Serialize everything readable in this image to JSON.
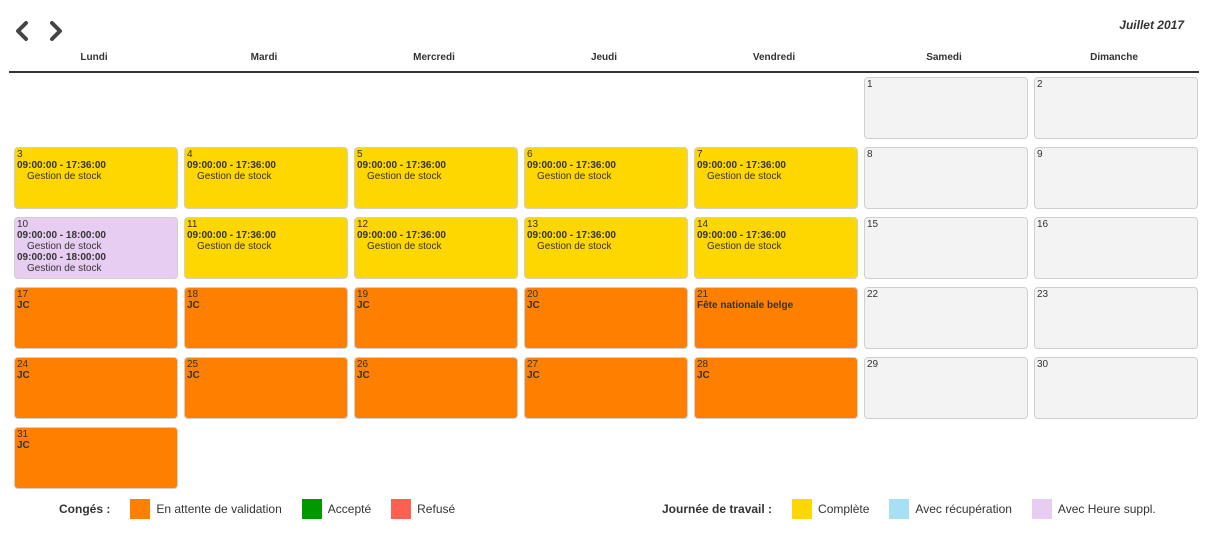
{
  "nav": {
    "prev_icon": "chevron-left-icon",
    "next_icon": "chevron-right-icon"
  },
  "month_title": "Juillet 2017",
  "weekdays": [
    "Lundi",
    "Mardi",
    "Mercredi",
    "Jeudi",
    "Vendredi",
    "Samedi",
    "Dimanche"
  ],
  "colors": {
    "pending": "#ff8000",
    "accepted": "#009900",
    "refused": "#ff6052",
    "complete": "#ffd700",
    "recovery": "#a8e0f3",
    "overtime": "#e8cdf3",
    "empty": "#f3f3f3"
  },
  "days": [
    {
      "day": "1",
      "type": "empty-day",
      "col": 5,
      "row": 0
    },
    {
      "day": "2",
      "type": "empty-day",
      "col": 6,
      "row": 0
    },
    {
      "day": "3",
      "type": "complete",
      "col": 0,
      "row": 1,
      "time": "09:00:00 - 17:36:00",
      "task": "Gestion de stock"
    },
    {
      "day": "4",
      "type": "complete",
      "col": 1,
      "row": 1,
      "time": "09:00:00 - 17:36:00",
      "task": "Gestion de stock"
    },
    {
      "day": "5",
      "type": "complete",
      "col": 2,
      "row": 1,
      "time": "09:00:00 - 17:36:00",
      "task": "Gestion de stock"
    },
    {
      "day": "6",
      "type": "complete",
      "col": 3,
      "row": 1,
      "time": "09:00:00 - 17:36:00",
      "task": "Gestion de stock"
    },
    {
      "day": "7",
      "type": "complete",
      "col": 4,
      "row": 1,
      "time": "09:00:00 - 17:36:00",
      "task": "Gestion de stock"
    },
    {
      "day": "8",
      "type": "empty-day",
      "col": 5,
      "row": 1
    },
    {
      "day": "9",
      "type": "empty-day",
      "col": 6,
      "row": 1
    },
    {
      "day": "10",
      "type": "overtime",
      "col": 0,
      "row": 2,
      "time": "09:00:00 - 18:00:00",
      "task": "Gestion de stock",
      "time2": "09:00:00 - 18:00:00",
      "task2": "Gestion de stock"
    },
    {
      "day": "11",
      "type": "complete",
      "col": 1,
      "row": 2,
      "time": "09:00:00 - 17:36:00",
      "task": "Gestion de stock"
    },
    {
      "day": "12",
      "type": "complete",
      "col": 2,
      "row": 2,
      "time": "09:00:00 - 17:36:00",
      "task": "Gestion de stock"
    },
    {
      "day": "13",
      "type": "complete",
      "col": 3,
      "row": 2,
      "time": "09:00:00 - 17:36:00",
      "task": "Gestion de stock"
    },
    {
      "day": "14",
      "type": "complete",
      "col": 4,
      "row": 2,
      "time": "09:00:00 - 17:36:00",
      "task": "Gestion de stock"
    },
    {
      "day": "15",
      "type": "empty-day",
      "col": 5,
      "row": 2
    },
    {
      "day": "16",
      "type": "empty-day",
      "col": 6,
      "row": 2
    },
    {
      "day": "17",
      "type": "pending",
      "col": 0,
      "row": 3,
      "label": "JC"
    },
    {
      "day": "18",
      "type": "pending",
      "col": 1,
      "row": 3,
      "label": "JC"
    },
    {
      "day": "19",
      "type": "pending",
      "col": 2,
      "row": 3,
      "label": "JC"
    },
    {
      "day": "20",
      "type": "pending",
      "col": 3,
      "row": 3,
      "label": "JC"
    },
    {
      "day": "21",
      "type": "pending",
      "col": 4,
      "row": 3,
      "label": "Fête nationale belge"
    },
    {
      "day": "22",
      "type": "empty-day",
      "col": 5,
      "row": 3
    },
    {
      "day": "23",
      "type": "empty-day",
      "col": 6,
      "row": 3
    },
    {
      "day": "24",
      "type": "pending",
      "col": 0,
      "row": 4,
      "label": "JC"
    },
    {
      "day": "25",
      "type": "pending",
      "col": 1,
      "row": 4,
      "label": "JC"
    },
    {
      "day": "26",
      "type": "pending",
      "col": 2,
      "row": 4,
      "label": "JC"
    },
    {
      "day": "27",
      "type": "pending",
      "col": 3,
      "row": 4,
      "label": "JC"
    },
    {
      "day": "28",
      "type": "pending",
      "col": 4,
      "row": 4,
      "label": "JC"
    },
    {
      "day": "29",
      "type": "empty-day",
      "col": 5,
      "row": 4
    },
    {
      "day": "30",
      "type": "empty-day",
      "col": 6,
      "row": 4
    },
    {
      "day": "31",
      "type": "pending",
      "col": 0,
      "row": 5,
      "label": "JC"
    }
  ],
  "legend": {
    "leave": {
      "title": "Congés :",
      "items": [
        {
          "label": "En attente de validation",
          "color": "#ff8000"
        },
        {
          "label": "Accepté",
          "color": "#009900"
        },
        {
          "label": "Refusé",
          "color": "#ff6052"
        }
      ]
    },
    "workday": {
      "title": "Journée de travail :",
      "items": [
        {
          "label": "Complète",
          "color": "#ffd700"
        },
        {
          "label": "Avec récupération",
          "color": "#a8e0f3"
        },
        {
          "label": "Avec Heure suppl.",
          "color": "#e8cdf3"
        }
      ]
    }
  }
}
